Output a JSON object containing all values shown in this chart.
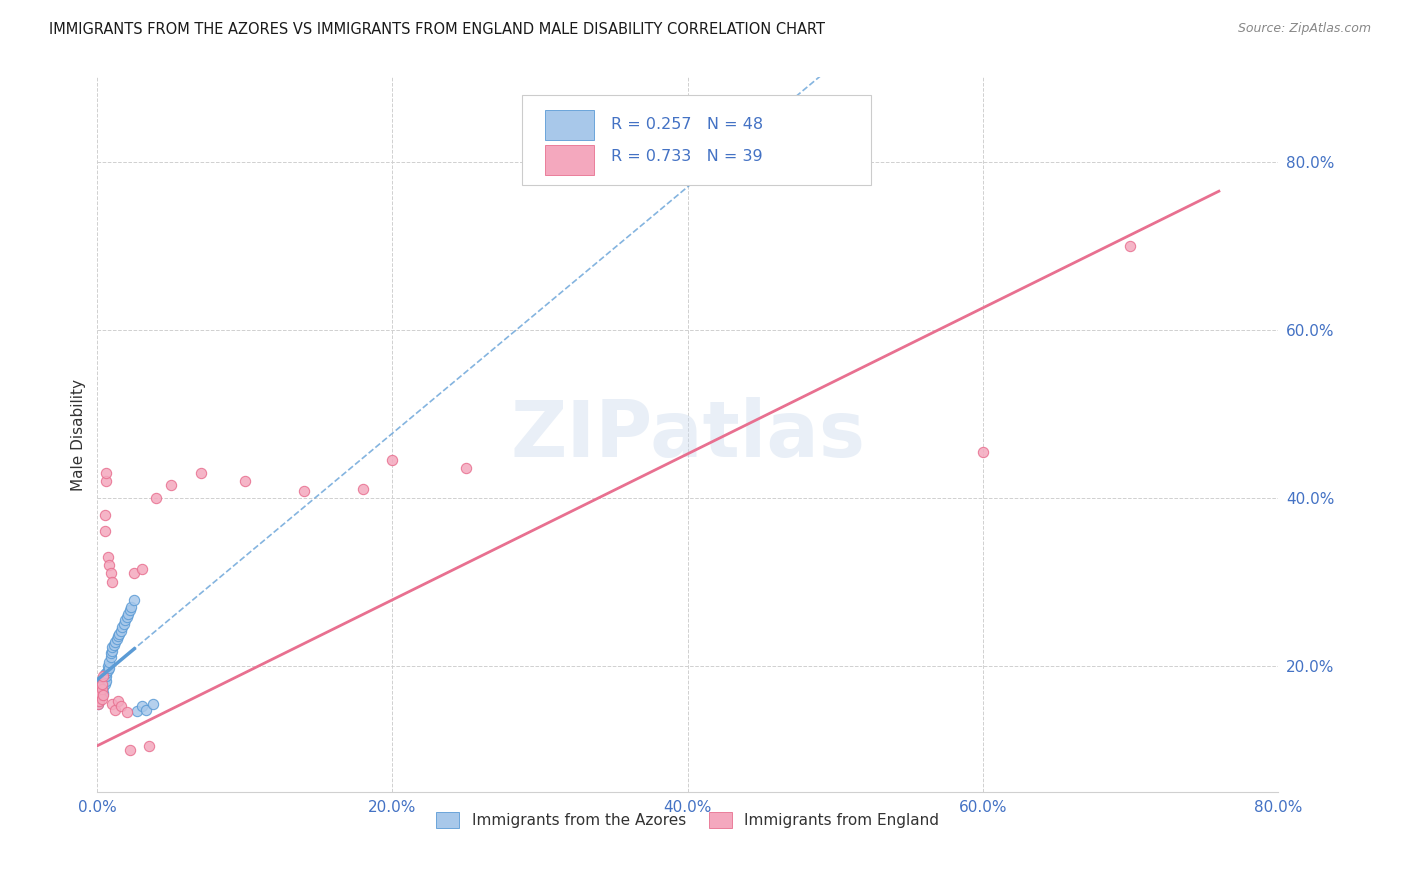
{
  "title": "IMMIGRANTS FROM THE AZORES VS IMMIGRANTS FROM ENGLAND MALE DISABILITY CORRELATION CHART",
  "source": "Source: ZipAtlas.com",
  "ylabel": "Male Disability",
  "legend1_R": "0.257",
  "legend1_N": "48",
  "legend2_R": "0.733",
  "legend2_N": "39",
  "legend1_label": "Immigrants from the Azores",
  "legend2_label": "Immigrants from England",
  "color_azores_fill": "#a8c8ea",
  "color_azores_edge": "#5b9bd5",
  "color_england_fill": "#f4a8be",
  "color_england_edge": "#e87090",
  "color_azores_line": "#5b9bd5",
  "color_england_line": "#e87090",
  "axis_label_color": "#4472c4",
  "watermark_color": "#c8d8ec",
  "grid_color": "#d0d0d0",
  "title_color": "#1a1a1a",
  "source_color": "#888888",
  "ylabel_color": "#333333",
  "xlim": [
    0.0,
    0.8
  ],
  "ylim": [
    0.05,
    0.9
  ],
  "x_ticks": [
    0.0,
    0.2,
    0.4,
    0.6,
    0.8
  ],
  "y_ticks_right": [
    0.2,
    0.4,
    0.6,
    0.8
  ],
  "azores_x": [
    0.0005,
    0.001,
    0.001,
    0.001,
    0.0015,
    0.002,
    0.002,
    0.002,
    0.0025,
    0.003,
    0.003,
    0.003,
    0.003,
    0.004,
    0.004,
    0.004,
    0.005,
    0.005,
    0.005,
    0.006,
    0.006,
    0.006,
    0.007,
    0.007,
    0.008,
    0.008,
    0.009,
    0.009,
    0.01,
    0.01,
    0.011,
    0.012,
    0.013,
    0.014,
    0.015,
    0.016,
    0.017,
    0.018,
    0.019,
    0.02,
    0.021,
    0.022,
    0.023,
    0.025,
    0.027,
    0.03,
    0.033,
    0.038
  ],
  "azores_y": [
    0.155,
    0.16,
    0.165,
    0.158,
    0.17,
    0.168,
    0.172,
    0.163,
    0.175,
    0.17,
    0.165,
    0.178,
    0.182,
    0.175,
    0.18,
    0.168,
    0.185,
    0.178,
    0.19,
    0.182,
    0.188,
    0.192,
    0.195,
    0.2,
    0.198,
    0.205,
    0.21,
    0.215,
    0.218,
    0.222,
    0.225,
    0.228,
    0.232,
    0.235,
    0.238,
    0.242,
    0.246,
    0.25,
    0.254,
    0.258,
    0.262,
    0.266,
    0.27,
    0.278,
    0.146,
    0.152,
    0.148,
    0.155
  ],
  "england_x": [
    0.0005,
    0.001,
    0.001,
    0.001,
    0.0015,
    0.002,
    0.002,
    0.003,
    0.003,
    0.003,
    0.004,
    0.004,
    0.005,
    0.005,
    0.006,
    0.006,
    0.007,
    0.008,
    0.009,
    0.01,
    0.01,
    0.012,
    0.014,
    0.016,
    0.02,
    0.022,
    0.025,
    0.03,
    0.035,
    0.04,
    0.05,
    0.07,
    0.1,
    0.14,
    0.18,
    0.2,
    0.25,
    0.6,
    0.7
  ],
  "england_y": [
    0.155,
    0.162,
    0.158,
    0.17,
    0.165,
    0.175,
    0.168,
    0.16,
    0.172,
    0.178,
    0.165,
    0.188,
    0.36,
    0.38,
    0.42,
    0.43,
    0.33,
    0.32,
    0.31,
    0.3,
    0.155,
    0.148,
    0.158,
    0.152,
    0.145,
    0.1,
    0.31,
    0.315,
    0.105,
    0.4,
    0.415,
    0.43,
    0.42,
    0.408,
    0.41,
    0.445,
    0.435,
    0.455,
    0.7
  ],
  "azores_line_x": [
    0.0,
    0.8
  ],
  "england_line_x": [
    0.0,
    0.76
  ]
}
